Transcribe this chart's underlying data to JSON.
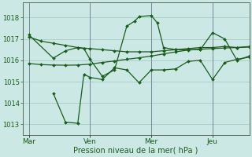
{
  "bg_color": "#cce8e4",
  "grid_color": "#aad0cc",
  "line_color": "#1a5c1a",
  "marker_color": "#1a5c1a",
  "xlabel": "Pression niveau de la mer( hPa )",
  "ylim": [
    1012.5,
    1018.7
  ],
  "yticks": [
    1013,
    1014,
    1015,
    1016,
    1017,
    1018
  ],
  "day_labels": [
    "Mar",
    "Ven",
    "Mer",
    "Jeu"
  ],
  "day_positions": [
    0,
    30,
    60,
    90
  ],
  "vline_positions": [
    0,
    30,
    60,
    90
  ],
  "xlim": [
    -3,
    108
  ],
  "series1_x": [
    0,
    6,
    12,
    18,
    24,
    30,
    36,
    42,
    48,
    54,
    60,
    66,
    72,
    78,
    84,
    90,
    96,
    102,
    108
  ],
  "series1_y": [
    1017.1,
    1016.9,
    1016.8,
    1016.7,
    1016.6,
    1016.55,
    1016.5,
    1016.45,
    1016.4,
    1016.4,
    1016.4,
    1016.45,
    1016.5,
    1016.55,
    1016.6,
    1016.6,
    1016.65,
    1016.6,
    1016.65
  ],
  "series2_x": [
    0,
    6,
    12,
    18,
    24,
    30,
    36,
    42,
    48,
    54,
    60,
    66,
    72,
    78,
    84,
    90,
    96,
    102,
    108
  ],
  "series2_y": [
    1015.85,
    1015.8,
    1015.78,
    1015.77,
    1015.78,
    1015.82,
    1015.9,
    1015.97,
    1016.05,
    1016.12,
    1016.2,
    1016.3,
    1016.4,
    1016.48,
    1016.52,
    1016.55,
    1016.58,
    1016.6,
    1016.62
  ],
  "series3_x": [
    0,
    12,
    18,
    24,
    27,
    30,
    36,
    42,
    48,
    52,
    54,
    60,
    63,
    66,
    72,
    84,
    90,
    96,
    102,
    108
  ],
  "series3_y": [
    1017.2,
    1016.1,
    1016.45,
    1016.6,
    1016.55,
    1016.05,
    1015.25,
    1015.55,
    1017.6,
    1017.85,
    1018.05,
    1018.1,
    1017.75,
    1016.6,
    1016.5,
    1016.5,
    1017.3,
    1017.0,
    1016.0,
    1016.2
  ],
  "series4_x": [
    12,
    18,
    24,
    27,
    30,
    36,
    42,
    48,
    54,
    60,
    66,
    72,
    78,
    84,
    90,
    96,
    102,
    108
  ],
  "series4_y": [
    1014.45,
    1013.1,
    1013.05,
    1015.35,
    1015.2,
    1015.1,
    1015.65,
    1015.55,
    1014.95,
    1015.55,
    1015.55,
    1015.6,
    1015.95,
    1016.0,
    1015.1,
    1015.9,
    1016.05,
    1016.15
  ]
}
